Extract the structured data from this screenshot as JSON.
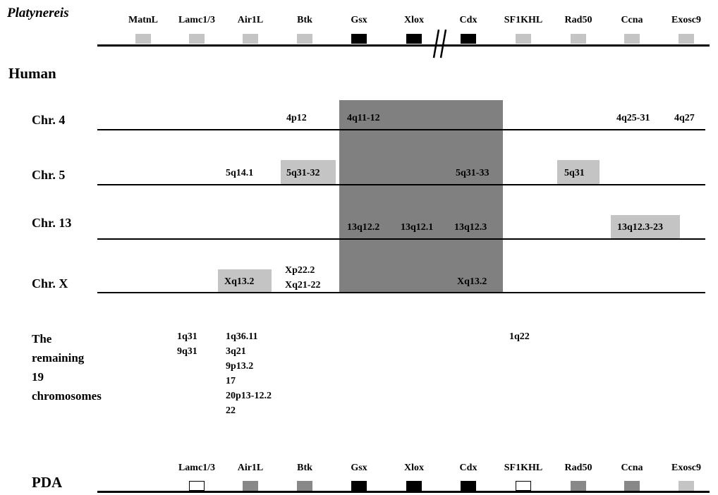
{
  "species_label": "Platynereis",
  "human_label": "Human",
  "pda_label": "PDA",
  "platynereis_genes": [
    {
      "name": "MatnL",
      "fill": "light"
    },
    {
      "name": "Lamc1/3",
      "fill": "light"
    },
    {
      "name": "Air1L",
      "fill": "light"
    },
    {
      "name": "Btk",
      "fill": "light"
    },
    {
      "name": "Gsx",
      "fill": "black"
    },
    {
      "name": "Xlox",
      "fill": "black"
    },
    {
      "name": "Cdx",
      "fill": "black"
    },
    {
      "name": "SF1KHL",
      "fill": "light"
    },
    {
      "name": "Rad50",
      "fill": "light"
    },
    {
      "name": "Ccna",
      "fill": "light"
    },
    {
      "name": "Exosc9",
      "fill": "light"
    }
  ],
  "pda_genes": [
    {
      "name": "Lamc1/3",
      "fill": "white"
    },
    {
      "name": "Air1L",
      "fill": "gray"
    },
    {
      "name": "Btk",
      "fill": "gray"
    },
    {
      "name": "Gsx",
      "fill": "black"
    },
    {
      "name": "Xlox",
      "fill": "black"
    },
    {
      "name": "Cdx",
      "fill": "black"
    },
    {
      "name": "SF1KHL",
      "fill": "white"
    },
    {
      "name": "Rad50",
      "fill": "gray"
    },
    {
      "name": "Ccna",
      "fill": "gray"
    },
    {
      "name": "Exosc9",
      "fill": "light"
    }
  ],
  "chromosomes": {
    "chr4": {
      "label": "Chr. 4",
      "bands": {
        "btk": "4p12",
        "gsx": "4q11-12",
        "ccna": "4q25-31",
        "exosc9": "4q27"
      }
    },
    "chr5": {
      "label": "Chr. 5",
      "bands": {
        "air1l": "5q14.1",
        "btk": "5q31-32",
        "cdx": "5q31-33",
        "rad50": "5q31"
      }
    },
    "chr13": {
      "label": "Chr. 13",
      "bands": {
        "gsx": "13q12.2",
        "xlox": "13q12.1",
        "cdx": "13q12.3",
        "ccna": "13q12.3-23"
      }
    },
    "chrX": {
      "label": "Chr. X",
      "bands": {
        "air1l": "Xq13.2",
        "btk_1": "Xp22.2",
        "btk_2": "Xq21-22",
        "cdx": "Xq13.2"
      }
    }
  },
  "remaining": {
    "title_lines": [
      "The",
      "remaining",
      "19",
      "chromosomes"
    ],
    "lamc": [
      "1q31",
      "9q31"
    ],
    "air1l": [
      "1q36.11",
      "3q21",
      "9p13.2",
      "17",
      "20p13-12.2",
      "22"
    ],
    "sf1khl": [
      "1q22"
    ]
  },
  "colors": {
    "shaded_region": "#808080",
    "light_box": "#c4c4c4",
    "marker_black": "#000000",
    "marker_gray": "#888888",
    "marker_light": "#c4c4c4"
  }
}
